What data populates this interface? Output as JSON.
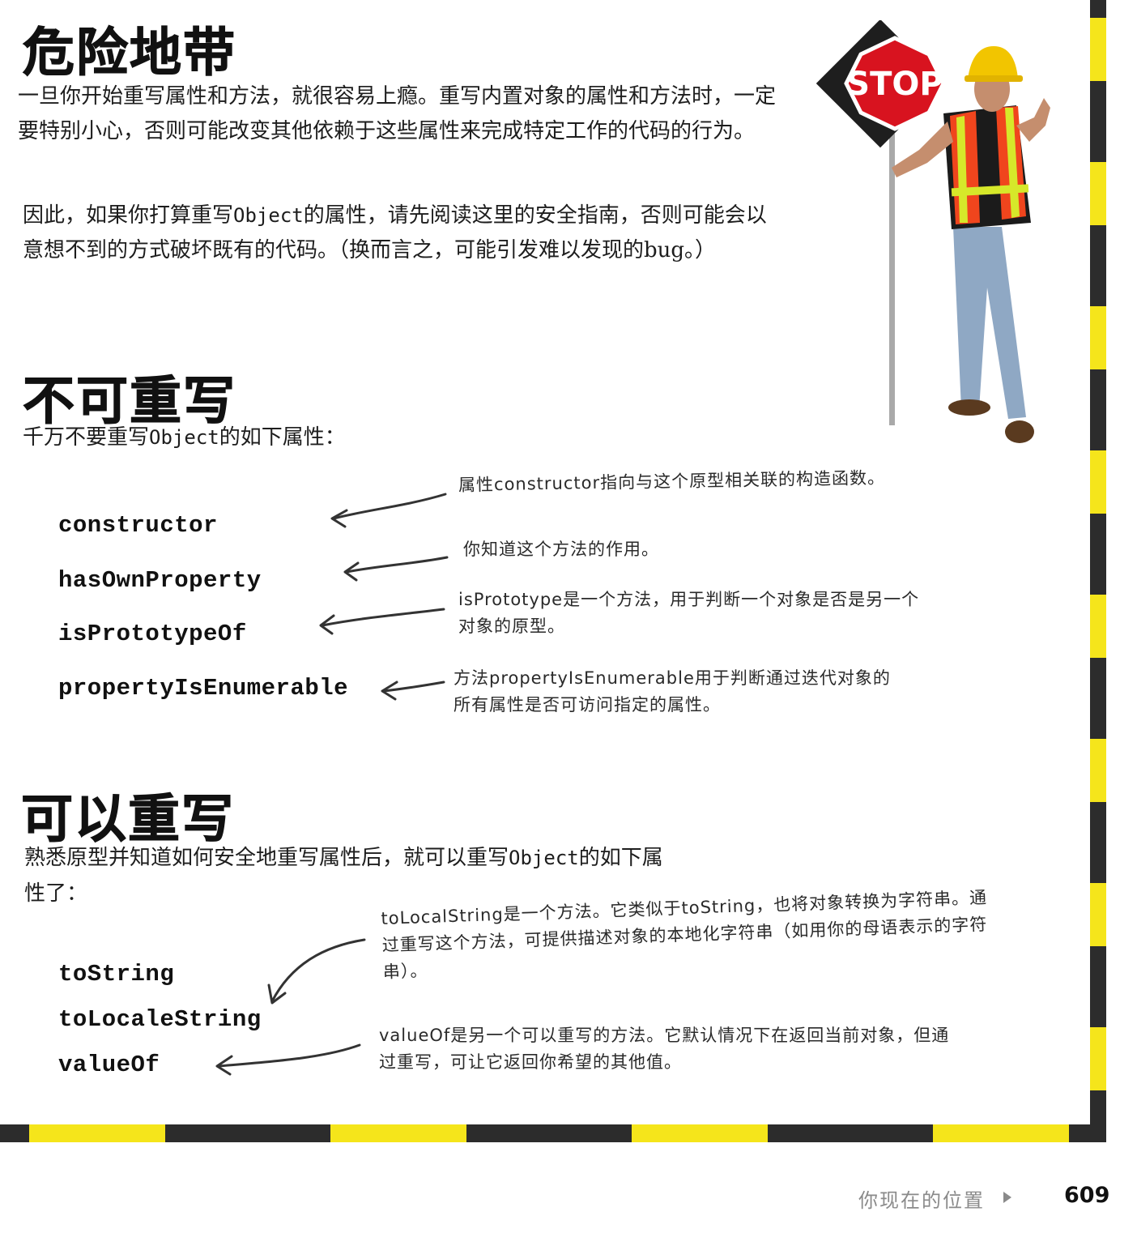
{
  "section1": {
    "title": "危险地带",
    "para1": "一旦你开始重写属性和方法，就很容易上瘾。重写内置对象的属性和方法时，一定要特别小心，否则可能改变其他依赖于这些属性来完成特定工作的代码的行为。",
    "para2_before": "因此，如果你打算重写",
    "para2_code": "Object",
    "para2_after": "的属性，请先阅读这里的安全指南，否则可能会以意想不到的方式破坏既有的代码。（换而言之，可能引发难以发现的bug。）"
  },
  "section2": {
    "title": "不可重写",
    "intro_before": "千万不要重写",
    "intro_code": "Object",
    "intro_after": "的如下属性：",
    "properties": [
      "constructor",
      "hasOwnProperty",
      "isPrototypeOf",
      "propertyIsEnumerable"
    ],
    "notes": [
      "属性constructor指向与这个原型相关联的构造函数。",
      "你知道这个方法的作用。",
      "isPrototype是一个方法，用于判断一个对象是否是另一个对象的原型。",
      "方法propertyIsEnumerable用于判断通过迭代对象的所有属性是否可访问指定的属性。"
    ]
  },
  "section3": {
    "title": "可以重写",
    "intro_before": "熟悉原型并知道如何安全地重写属性后，就可以重写",
    "intro_code": "Object",
    "intro_after": "的如下属性了：",
    "properties": [
      "toString",
      "toLocaleString",
      "valueOf"
    ],
    "notes": [
      "toLocalString是一个方法。它类似于toString，也将对象转换为字符串。通过重写这个方法，可提供描述对象的本地化字符串（如用你的母语表示的字符串）。",
      "valueOf是另一个可以重写的方法。它默认情况下在返回当前对象，但通过重写，可让它返回你希望的其他值。"
    ]
  },
  "photo": {
    "sign_text": "STOP"
  },
  "footer": {
    "label": "你现在的位置",
    "page": "609"
  },
  "colors": {
    "stripe_yellow": "#f5e51b",
    "stripe_dark": "#2c2c2c",
    "sign_red": "#d8131f",
    "vest_orange": "#f0451d",
    "vest_yellow": "#d6e82a"
  }
}
